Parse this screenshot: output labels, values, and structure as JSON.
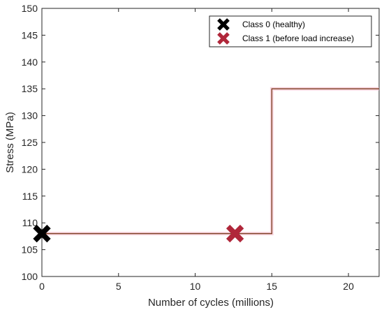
{
  "chart_data": {
    "type": "line",
    "xlabel": "Number of cycles (millions)",
    "ylabel": "Stress (MPa)",
    "xlim": [
      0,
      22
    ],
    "ylim": [
      100,
      150
    ],
    "xticks": [
      0,
      5,
      10,
      15,
      20
    ],
    "yticks": [
      100,
      105,
      110,
      115,
      120,
      125,
      130,
      135,
      140,
      145,
      150
    ],
    "grid": false,
    "legend_position": "top-right",
    "series": [
      {
        "kind": "step-line",
        "color": "#7a3b1e",
        "x": [
          0,
          15,
          15,
          22
        ],
        "y": [
          108,
          108,
          135,
          135
        ]
      },
      {
        "name": "Class 0 (healthy)",
        "kind": "marker",
        "marker": "x",
        "color": "#000000",
        "x": [
          0
        ],
        "y": [
          108
        ]
      },
      {
        "name": "Class 1 (before load increase)",
        "kind": "marker",
        "marker": "x",
        "color": "#b0273a",
        "x": [
          12.6
        ],
        "y": [
          108
        ]
      }
    ]
  }
}
